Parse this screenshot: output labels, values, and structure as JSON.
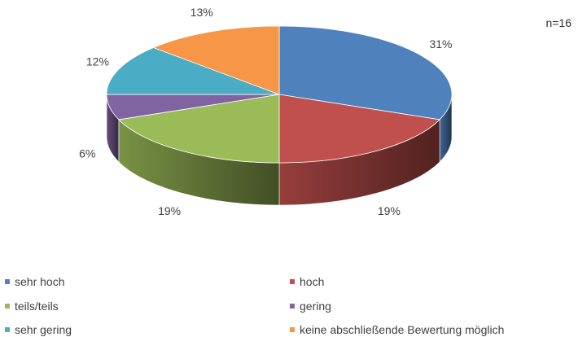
{
  "sample_size": "n=16",
  "chart_data": {
    "type": "pie",
    "style": "3d",
    "categories": [
      "sehr hoch",
      "hoch",
      "teils/teils",
      "gering",
      "sehr gering",
      "keine abschließende Bewertung möglich"
    ],
    "values": [
      31,
      19,
      19,
      6,
      12,
      13
    ],
    "labels": [
      "31%",
      "19%",
      "19%",
      "6%",
      "12%",
      "13%"
    ],
    "colors": [
      "#4F81BD",
      "#C0504D",
      "#9BBB59",
      "#8064A2",
      "#4BACC6",
      "#F79646"
    ],
    "unit": "%",
    "legend_position": "bottom"
  },
  "legend": [
    {
      "label": "sehr hoch",
      "color": "#4F81BD"
    },
    {
      "label": "hoch",
      "color": "#C0504D"
    },
    {
      "label": "teils/teils",
      "color": "#9BBB59"
    },
    {
      "label": "gering",
      "color": "#8064A2"
    },
    {
      "label": "sehr gering",
      "color": "#4BACC6"
    },
    {
      "label": "keine abschließende Bewertung möglich",
      "color": "#F79646"
    }
  ]
}
